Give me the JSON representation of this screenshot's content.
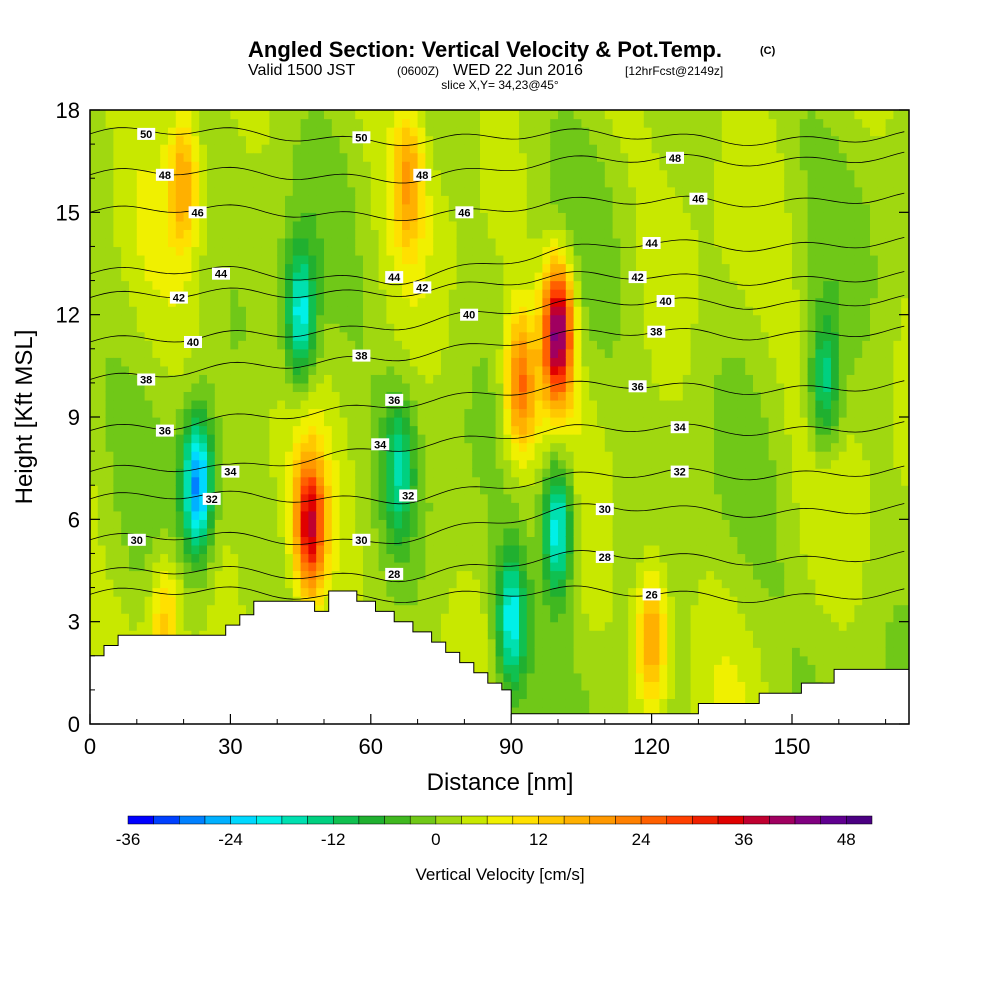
{
  "header": {
    "title": "Angled Section: Vertical Velocity & Pot.Temp.",
    "title_mark": "(C)",
    "valid_prefix": "Valid 1500 JST",
    "valid_utc": "(0600Z)",
    "valid_date": "WED 22 Jun 2016",
    "forecast": "[12hrFcst@2149z]",
    "slice": "slice X,Y= 34,23@45°"
  },
  "chart_data": {
    "type": "heatmap",
    "xlabel": "Distance [nm]",
    "ylabel": "Height [Kft MSL]",
    "xlim": [
      0,
      175
    ],
    "ylim": [
      0,
      18
    ],
    "xticks": [
      "0",
      "30",
      "60",
      "90",
      "120",
      "150"
    ],
    "yticks": [
      "0",
      "3",
      "6",
      "9",
      "12",
      "15",
      "18"
    ],
    "colorbar": {
      "label": "Vertical Velocity [cm/s]",
      "tick_labels": [
        "-36",
        "-24",
        "-12",
        "0",
        "12",
        "24",
        "36",
        "48"
      ],
      "levels": [
        -36,
        -33,
        -30,
        -27,
        -24,
        -21,
        -18,
        -15,
        -12,
        -9,
        -6,
        -3,
        0,
        3,
        6,
        9,
        12,
        15,
        18,
        21,
        24,
        27,
        30,
        33,
        36,
        39,
        42,
        45,
        48,
        51
      ],
      "colors": [
        "#0000ff",
        "#0040ff",
        "#0080ff",
        "#00b0ff",
        "#00d8ff",
        "#00f0e8",
        "#00e0b0",
        "#00d080",
        "#10c050",
        "#20b030",
        "#40b820",
        "#70c818",
        "#a0d810",
        "#c8e800",
        "#f0f000",
        "#ffe000",
        "#ffc800",
        "#ffb000",
        "#ff9800",
        "#ff8000",
        "#ff6000",
        "#ff4000",
        "#f02000",
        "#e00000",
        "#c00030",
        "#a00060",
        "#800080",
        "#600090",
        "#4b0082"
      ]
    },
    "updraft_cores": [
      {
        "x": 47,
        "z": 5.8,
        "w": 33
      },
      {
        "x": 100,
        "z": 11.5,
        "w": 42
      },
      {
        "x": 92,
        "z": 10,
        "w": 22
      },
      {
        "x": 20,
        "z": 16,
        "w": 15
      },
      {
        "x": 68,
        "z": 16,
        "w": 15
      },
      {
        "x": 120,
        "z": 2.5,
        "w": 18
      },
      {
        "x": 16,
        "z": 3,
        "w": 12
      }
    ],
    "downdraft_cores": [
      {
        "x": 23,
        "z": 7,
        "w": -30
      },
      {
        "x": 45,
        "z": 12,
        "w": -22
      },
      {
        "x": 90,
        "z": 3,
        "w": -22
      },
      {
        "x": 100,
        "z": 5.8,
        "w": -25
      },
      {
        "x": 66,
        "z": 7.5,
        "w": -15
      },
      {
        "x": 157,
        "z": 10,
        "w": -16
      }
    ],
    "theta_contour_labels": [
      {
        "x": 12,
        "z": 17.3,
        "text": "50"
      },
      {
        "x": 58,
        "z": 17.2,
        "text": "50"
      },
      {
        "x": 16,
        "z": 16.1,
        "text": "48"
      },
      {
        "x": 71,
        "z": 16.1,
        "text": "48"
      },
      {
        "x": 125,
        "z": 16.6,
        "text": "48"
      },
      {
        "x": 23,
        "z": 15.0,
        "text": "46"
      },
      {
        "x": 80,
        "z": 15.0,
        "text": "46"
      },
      {
        "x": 130,
        "z": 15.4,
        "text": "46"
      },
      {
        "x": 28,
        "z": 13.2,
        "text": "44"
      },
      {
        "x": 65,
        "z": 13.1,
        "text": "44"
      },
      {
        "x": 120,
        "z": 14.1,
        "text": "44"
      },
      {
        "x": 19,
        "z": 12.5,
        "text": "42"
      },
      {
        "x": 71,
        "z": 12.8,
        "text": "42"
      },
      {
        "x": 117,
        "z": 13.1,
        "text": "42"
      },
      {
        "x": 22,
        "z": 11.2,
        "text": "40"
      },
      {
        "x": 81,
        "z": 12.0,
        "text": "40"
      },
      {
        "x": 123,
        "z": 12.4,
        "text": "40"
      },
      {
        "x": 12,
        "z": 10.1,
        "text": "38"
      },
      {
        "x": 58,
        "z": 10.8,
        "text": "38"
      },
      {
        "x": 121,
        "z": 11.5,
        "text": "38"
      },
      {
        "x": 16,
        "z": 8.6,
        "text": "36"
      },
      {
        "x": 65,
        "z": 9.5,
        "text": "36"
      },
      {
        "x": 117,
        "z": 9.9,
        "text": "36"
      },
      {
        "x": 30,
        "z": 7.4,
        "text": "34"
      },
      {
        "x": 62,
        "z": 8.2,
        "text": "34"
      },
      {
        "x": 126,
        "z": 8.7,
        "text": "34"
      },
      {
        "x": 26,
        "z": 6.6,
        "text": "32"
      },
      {
        "x": 68,
        "z": 6.7,
        "text": "32"
      },
      {
        "x": 126,
        "z": 7.4,
        "text": "32"
      },
      {
        "x": 10,
        "z": 5.4,
        "text": "30"
      },
      {
        "x": 58,
        "z": 5.4,
        "text": "30"
      },
      {
        "x": 110,
        "z": 6.3,
        "text": "30"
      },
      {
        "x": 65,
        "z": 4.4,
        "text": "28"
      },
      {
        "x": 110,
        "z": 4.9,
        "text": "28"
      },
      {
        "x": 120,
        "z": 3.8,
        "text": "26"
      }
    ],
    "terrain": [
      [
        0,
        2.0
      ],
      [
        3,
        2.0
      ],
      [
        3,
        2.3
      ],
      [
        6,
        2.3
      ],
      [
        6,
        2.6
      ],
      [
        29,
        2.6
      ],
      [
        29,
        2.9
      ],
      [
        32,
        2.9
      ],
      [
        32,
        3.2
      ],
      [
        35,
        3.2
      ],
      [
        35,
        3.6
      ],
      [
        48,
        3.6
      ],
      [
        48,
        3.3
      ],
      [
        51,
        3.3
      ],
      [
        51,
        3.9
      ],
      [
        57,
        3.9
      ],
      [
        57,
        3.6
      ],
      [
        61,
        3.6
      ],
      [
        61,
        3.3
      ],
      [
        65,
        3.3
      ],
      [
        65,
        3.0
      ],
      [
        69,
        3.0
      ],
      [
        69,
        2.7
      ],
      [
        73,
        2.7
      ],
      [
        73,
        2.4
      ],
      [
        76,
        2.4
      ],
      [
        76,
        2.1
      ],
      [
        79,
        2.1
      ],
      [
        79,
        1.8
      ],
      [
        82,
        1.8
      ],
      [
        82,
        1.5
      ],
      [
        85,
        1.5
      ],
      [
        85,
        1.2
      ],
      [
        88,
        1.2
      ],
      [
        88,
        1.0
      ],
      [
        90,
        1.0
      ],
      [
        90,
        0.3
      ],
      [
        130,
        0.3
      ],
      [
        130,
        0.6
      ],
      [
        143,
        0.6
      ],
      [
        143,
        0.9
      ],
      [
        152,
        0.9
      ],
      [
        152,
        1.2
      ],
      [
        159,
        1.2
      ],
      [
        159,
        1.6
      ],
      [
        175,
        1.6
      ]
    ]
  }
}
